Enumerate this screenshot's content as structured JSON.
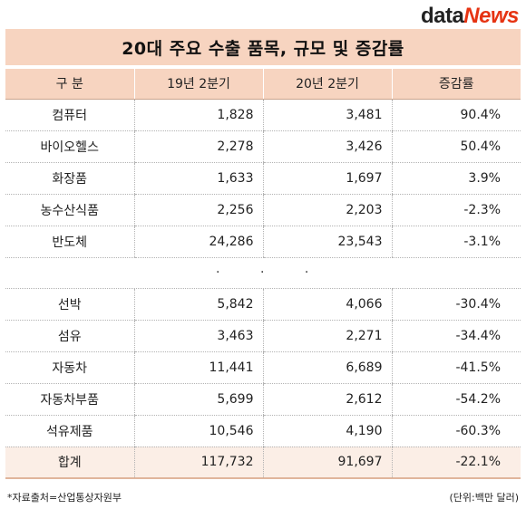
{
  "logo": {
    "part1": "data",
    "part2": "News"
  },
  "title": "20대 주요 수출 품목, 규모 및 증감률",
  "columns": [
    "구  분",
    "19년 2분기",
    "20년 2분기",
    "증감률"
  ],
  "rows_top": [
    {
      "name": "컴퓨터",
      "q19": "1,828",
      "q20": "3,481",
      "rate": "90.4%"
    },
    {
      "name": "바이오헬스",
      "q19": "2,278",
      "q20": "3,426",
      "rate": "50.4%"
    },
    {
      "name": "화장품",
      "q19": "1,633",
      "q20": "1,697",
      "rate": "3.9%"
    },
    {
      "name": "농수산식품",
      "q19": "2,256",
      "q20": "2,203",
      "rate": "-2.3%"
    },
    {
      "name": "반도체",
      "q19": "24,286",
      "q20": "23,543",
      "rate": "-3.1%"
    }
  ],
  "ellipsis": "·          ·          ·",
  "rows_bottom": [
    {
      "name": "선박",
      "q19": "5,842",
      "q20": "4,066",
      "rate": "-30.4%"
    },
    {
      "name": "섬유",
      "q19": "3,463",
      "q20": "2,271",
      "rate": "-34.4%"
    },
    {
      "name": "자동차",
      "q19": "11,441",
      "q20": "6,689",
      "rate": "-41.5%"
    },
    {
      "name": "자동차부품",
      "q19": "5,699",
      "q20": "2,612",
      "rate": "-54.2%"
    },
    {
      "name": "석유제품",
      "q19": "10,546",
      "q20": "4,190",
      "rate": "-60.3%"
    }
  ],
  "total": {
    "name": "합계",
    "q19": "117,732",
    "q20": "91,697",
    "rate": "-22.1%"
  },
  "source": "*자료출처=산업통상자원부",
  "unit": "(단위:백만 달러)"
}
